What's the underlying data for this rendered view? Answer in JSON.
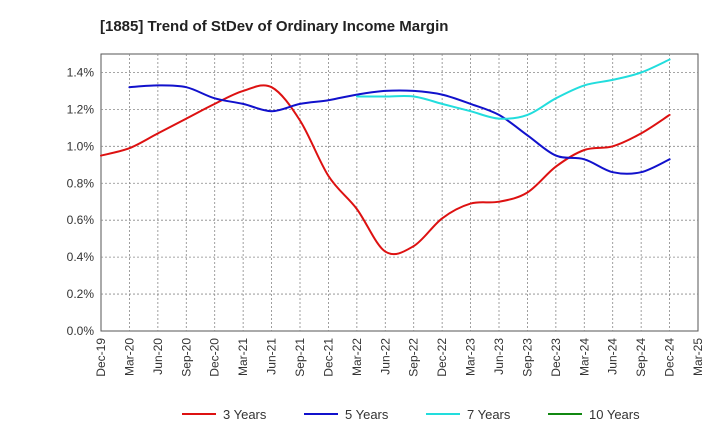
{
  "chart_data": {
    "type": "line",
    "title": "[1885]  Trend of StDev of Ordinary Income Margin",
    "xlabel": "",
    "ylabel": "",
    "x": [
      "Dec-19",
      "Mar-20",
      "Jun-20",
      "Sep-20",
      "Dec-20",
      "Mar-21",
      "Jun-21",
      "Sep-21",
      "Dec-21",
      "Mar-22",
      "Jun-22",
      "Sep-22",
      "Dec-22",
      "Mar-23",
      "Jun-23",
      "Sep-23",
      "Dec-23",
      "Mar-24",
      "Jun-24",
      "Sep-24",
      "Dec-24",
      "Mar-25"
    ],
    "y_ticks": [
      "0.0%",
      "0.2%",
      "0.4%",
      "0.6%",
      "0.8%",
      "1.0%",
      "1.2%",
      "1.4%"
    ],
    "ylim": [
      0,
      1.5
    ],
    "grid": true,
    "legend_position": "bottom",
    "series": [
      {
        "name": "3 Years",
        "color": "#dd1111",
        "values": [
          0.95,
          0.99,
          1.07,
          1.15,
          1.23,
          1.3,
          1.32,
          1.14,
          0.84,
          0.66,
          0.43,
          0.46,
          0.61,
          0.69,
          0.7,
          0.75,
          0.89,
          0.98,
          1.0,
          1.07,
          1.17,
          null
        ]
      },
      {
        "name": "5 Years",
        "color": "#1111cc",
        "values": [
          null,
          1.32,
          1.33,
          1.32,
          1.26,
          1.23,
          1.19,
          1.23,
          1.25,
          1.28,
          1.3,
          1.3,
          1.28,
          1.23,
          1.17,
          1.06,
          0.95,
          0.93,
          0.86,
          0.86,
          0.93,
          null
        ]
      },
      {
        "name": "7 Years",
        "color": "#22dddd",
        "values": [
          null,
          null,
          null,
          null,
          null,
          null,
          null,
          null,
          null,
          1.27,
          1.27,
          1.27,
          1.23,
          1.19,
          1.15,
          1.17,
          1.26,
          1.33,
          1.36,
          1.4,
          1.47,
          null
        ]
      },
      {
        "name": "10 Years",
        "color": "#118811",
        "values": [
          null,
          null,
          null,
          null,
          null,
          null,
          null,
          null,
          null,
          null,
          null,
          null,
          null,
          null,
          null,
          null,
          null,
          null,
          null,
          null,
          null,
          null
        ]
      }
    ]
  }
}
